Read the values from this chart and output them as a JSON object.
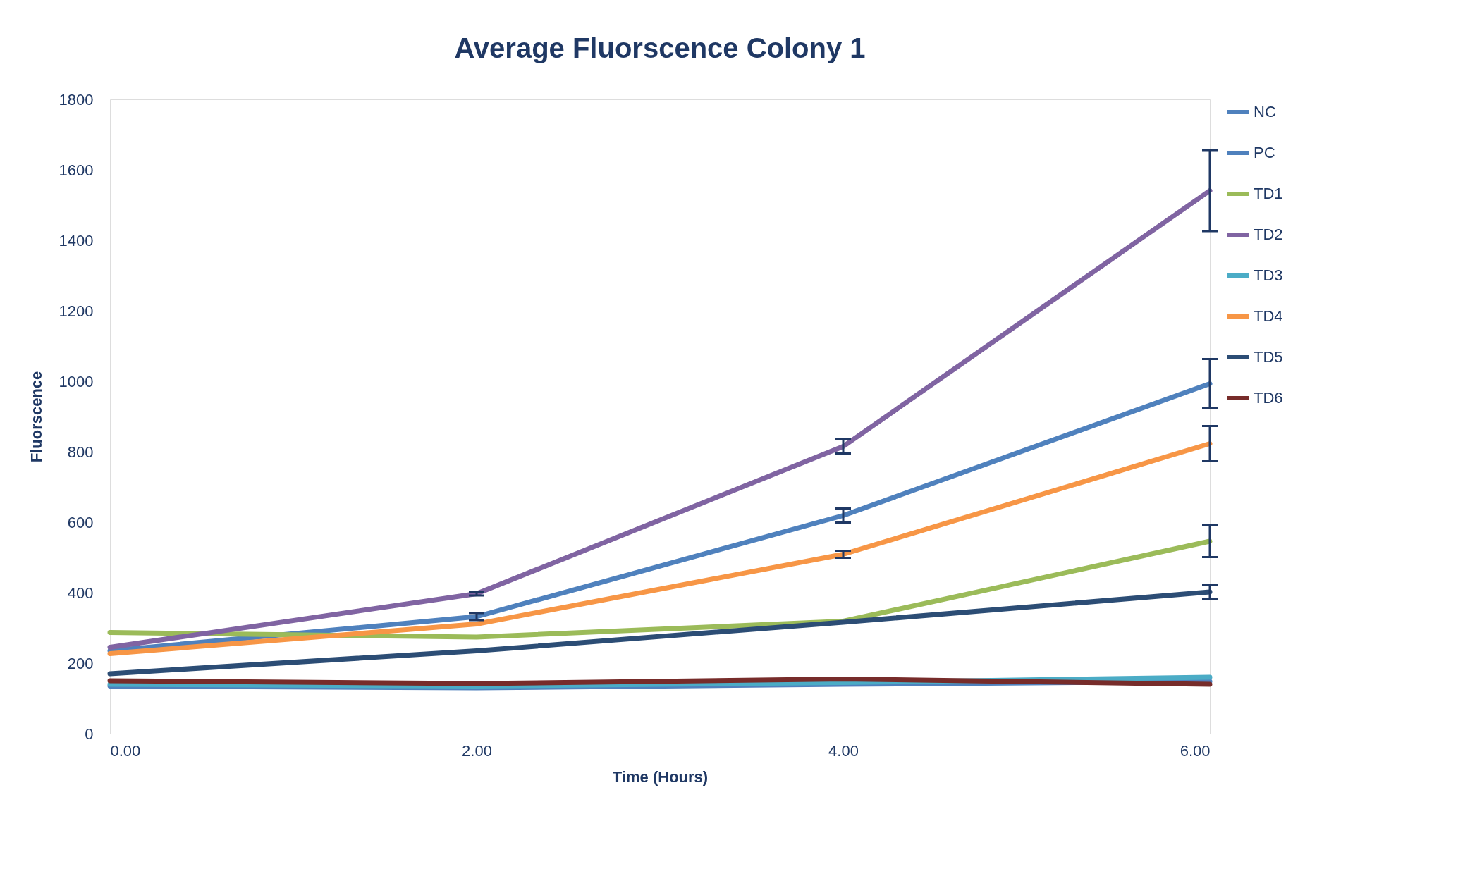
{
  "chart_data": {
    "type": "line",
    "title": "Average Fluorscence Colony 1",
    "xlabel": "Time (Hours)",
    "ylabel": "Fluorscence",
    "x": [
      0,
      2,
      4,
      6
    ],
    "xlim": [
      0,
      6
    ],
    "xticks": [
      {
        "value": 0,
        "label": "0.00"
      },
      {
        "value": 2,
        "label": "2.00"
      },
      {
        "value": 4,
        "label": "4.00"
      },
      {
        "value": 6,
        "label": "6.00"
      }
    ],
    "ylim": [
      0,
      1800
    ],
    "yticks": [
      0,
      200,
      400,
      600,
      800,
      1000,
      1200,
      1400,
      1600,
      1800
    ],
    "grid": false,
    "legend": "right",
    "marker": "none",
    "line_style": "solid",
    "series": [
      {
        "name": "NC",
        "color": "#4f81bd",
        "values": [
          135,
          130,
          140,
          148
        ]
      },
      {
        "name": "PC",
        "color": "#4f81bd",
        "values": [
          235,
          332,
          619,
          993
        ],
        "errors": [
          null,
          10,
          20,
          70
        ]
      },
      {
        "name": "TD1",
        "color": "#9bbb59",
        "values": [
          287,
          274,
          319,
          546
        ],
        "errors": [
          null,
          null,
          null,
          45
        ]
      },
      {
        "name": "TD2",
        "color": "#8064a2",
        "values": [
          245,
          397,
          815,
          1541
        ],
        "errors": [
          null,
          5,
          20,
          115
        ]
      },
      {
        "name": "TD3",
        "color": "#4bacc6",
        "values": [
          140,
          135,
          145,
          160
        ]
      },
      {
        "name": "TD4",
        "color": "#f79646",
        "values": [
          227,
          311,
          509,
          823
        ],
        "errors": [
          null,
          null,
          10,
          50
        ]
      },
      {
        "name": "TD5",
        "color": "#2c4d75",
        "values": [
          170,
          235,
          316,
          402
        ],
        "errors": [
          null,
          null,
          null,
          20
        ]
      },
      {
        "name": "TD6",
        "color": "#772c2a",
        "values": [
          150,
          142,
          155,
          140
        ]
      }
    ]
  }
}
